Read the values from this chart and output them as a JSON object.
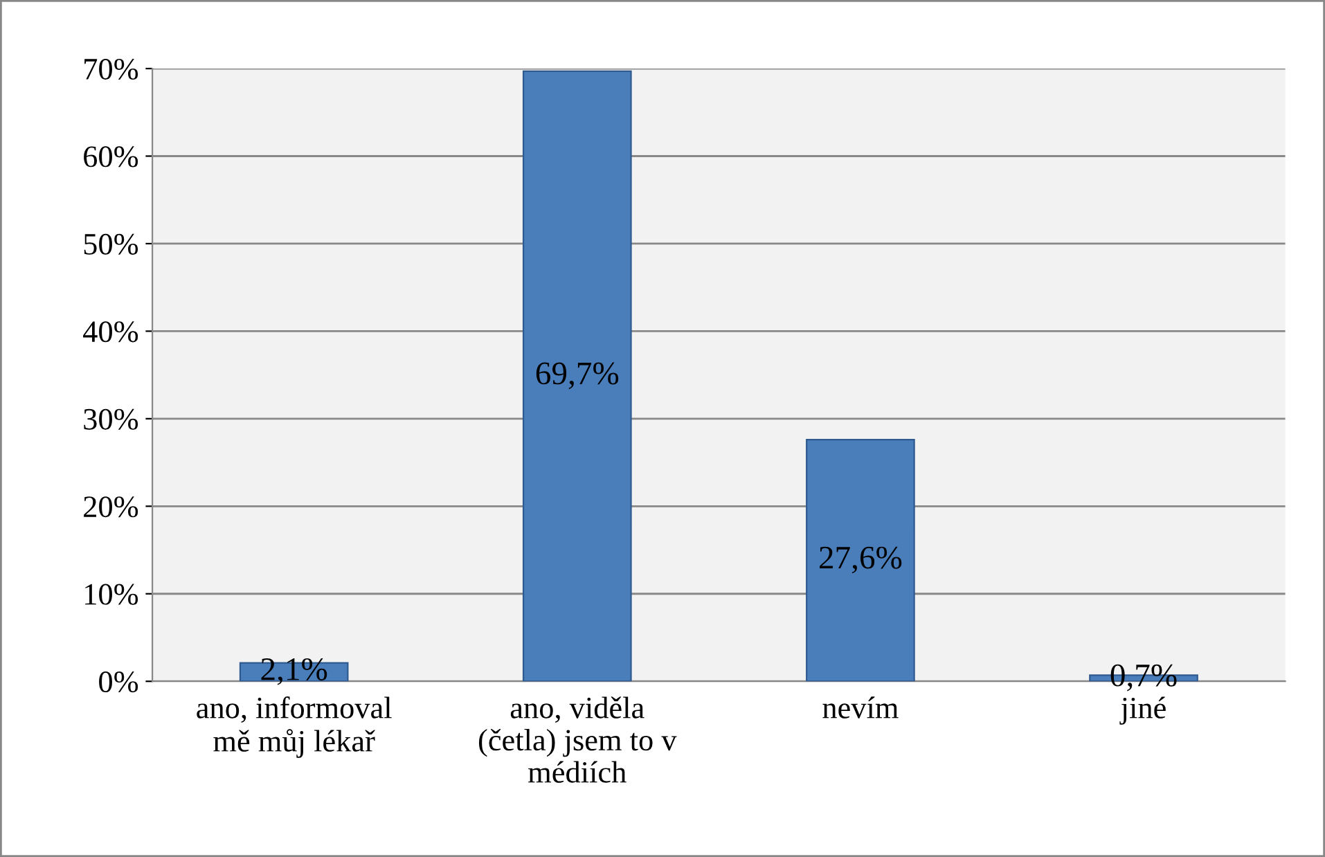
{
  "chart_data": {
    "type": "bar",
    "categories": [
      "ano, informoval\nmě můj lékař",
      "ano, viděla\n(četla) jsem to v\nmédiích",
      "nevím",
      "jiné"
    ],
    "values": [
      2.1,
      69.7,
      27.6,
      0.7
    ],
    "value_labels": [
      "2,1%",
      "69,7%",
      "27,6%",
      "0,7%"
    ],
    "color": "#4a7ebb",
    "ylim": [
      0,
      70
    ],
    "yticks": [
      {
        "value": 0,
        "label": "0%"
      },
      {
        "value": 10,
        "label": "10%"
      },
      {
        "value": 20,
        "label": "20%"
      },
      {
        "value": 30,
        "label": "30%"
      },
      {
        "value": 40,
        "label": "40%"
      },
      {
        "value": 50,
        "label": "50%"
      },
      {
        "value": 60,
        "label": "60%"
      },
      {
        "value": 70,
        "label": "70%"
      }
    ],
    "grid": "y"
  }
}
